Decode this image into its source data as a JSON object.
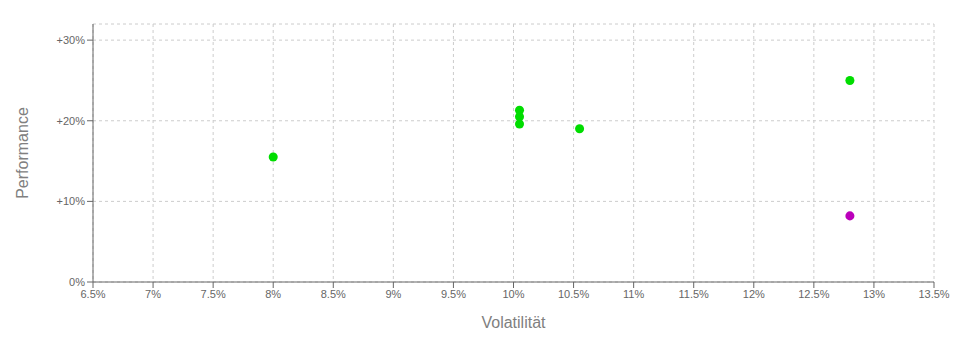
{
  "chart_data": {
    "type": "scatter",
    "xlabel": "Volatilität",
    "ylabel": "Performance",
    "xlim": [
      0.065,
      0.135
    ],
    "ylim": [
      0.0,
      0.32
    ],
    "xticks": [
      {
        "value": 0.065,
        "label": "6.5%"
      },
      {
        "value": 0.07,
        "label": "7%"
      },
      {
        "value": 0.075,
        "label": "7.5%"
      },
      {
        "value": 0.08,
        "label": "8%"
      },
      {
        "value": 0.085,
        "label": "8.5%"
      },
      {
        "value": 0.09,
        "label": "9%"
      },
      {
        "value": 0.095,
        "label": "9.5%"
      },
      {
        "value": 0.1,
        "label": "10%"
      },
      {
        "value": 0.105,
        "label": "10.5%"
      },
      {
        "value": 0.11,
        "label": "11%"
      },
      {
        "value": 0.115,
        "label": "11.5%"
      },
      {
        "value": 0.12,
        "label": "12%"
      },
      {
        "value": 0.125,
        "label": "12.5%"
      },
      {
        "value": 0.13,
        "label": "13%"
      },
      {
        "value": 0.135,
        "label": "13.5%"
      }
    ],
    "yticks": [
      {
        "value": 0.0,
        "label": "0%"
      },
      {
        "value": 0.1,
        "label": "+10%"
      },
      {
        "value": 0.2,
        "label": "+20%"
      },
      {
        "value": 0.3,
        "label": "+30%"
      }
    ],
    "grid": true,
    "series": [
      {
        "color": "#00dd00",
        "x": [
          0.08,
          0.1005,
          0.1005,
          0.1005,
          0.1055,
          0.128
        ],
        "values": [
          0.155,
          0.213,
          0.205,
          0.196,
          0.19,
          0.25
        ]
      },
      {
        "color": "#bb00bb",
        "x": [
          0.128
        ],
        "values": [
          0.082
        ]
      }
    ]
  }
}
